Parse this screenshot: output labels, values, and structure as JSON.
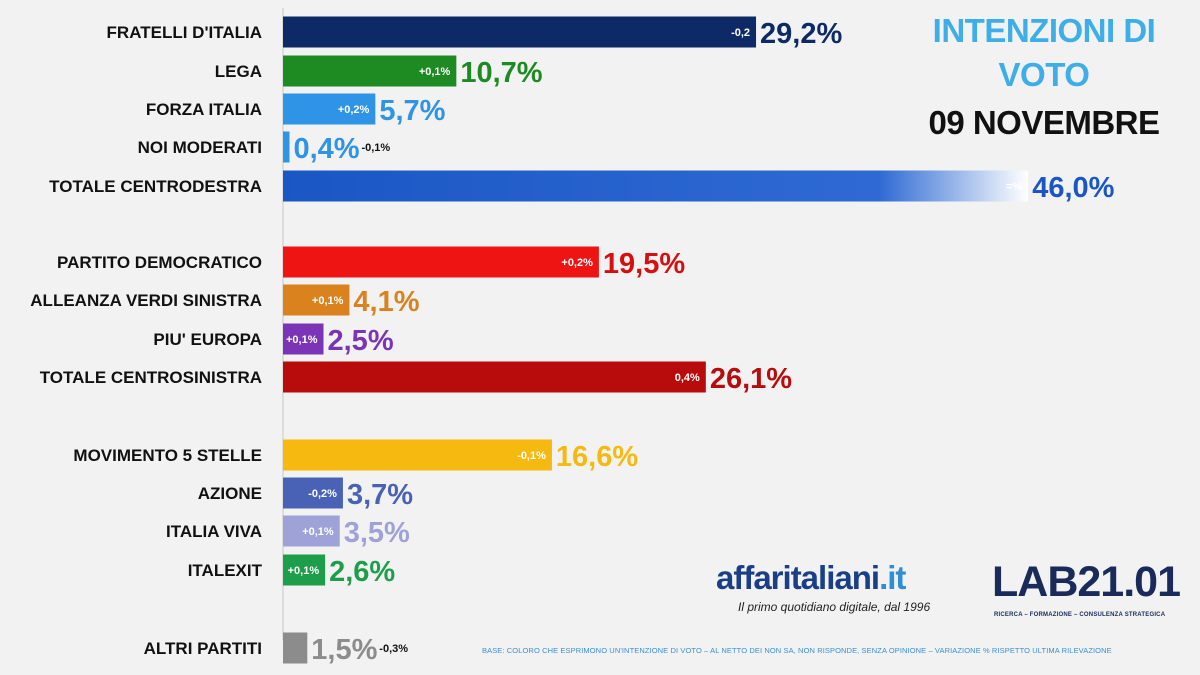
{
  "header": {
    "title_line1": "INTENZIONI DI",
    "title_line2": "VOTO",
    "date": "09 NOVEMBRE"
  },
  "brand": {
    "name_main": "affaritaliani",
    "name_suffix": ".it",
    "tagline": "Il primo quotidiano digitale, dal 1996",
    "lab_logo": "LAB21.01",
    "lab_subtitle": "RICERCA – FORMAZIONE – CONSULENZA STRATEGICA"
  },
  "footnote": "BASE: COLORO CHE ESPRIMONO UN'INTENZIONE DI VOTO – AL NETTO DEI NON SA, NON RISPONDE, SENZA OPINIONE – VARIAZIONE % RISPETTO ULTIMA RILEVAZIONE",
  "chart_data": {
    "type": "bar",
    "orientation": "horizontal",
    "unit": "%",
    "bars": [
      {
        "label": "FRATELLI D'ITALIA",
        "value": 29.2,
        "display": "29,2%",
        "delta": "-0,2",
        "delta_position": "inside",
        "color": "#0d2a66",
        "value_color": "#0d2a66",
        "gradient": false
      },
      {
        "label": "LEGA",
        "value": 10.7,
        "display": "10,7%",
        "delta": "+0,1%",
        "delta_position": "inside",
        "color": "#1e8a22",
        "value_color": "#1e8a22",
        "gradient": false
      },
      {
        "label": "FORZA ITALIA",
        "value": 5.7,
        "display": "5,7%",
        "delta": "+0,2%",
        "delta_position": "inside",
        "color": "#2f93e6",
        "value_color": "#2f93e6",
        "gradient": false
      },
      {
        "label": "NOI MODERATI",
        "value": 0.4,
        "display": "0,4%",
        "delta": "-0,1%",
        "delta_position": "outside",
        "color": "#2f93e6",
        "value_color": "#2f93e6",
        "gradient": false
      },
      {
        "label": "TOTALE CENTRODESTRA",
        "value": 46.0,
        "display": "46,0%",
        "delta": "=%",
        "delta_position": "inside",
        "color": "#1b57c4",
        "value_color": "#1b57c4",
        "gradient": true
      },
      {
        "label": "PARTITO DEMOCRATICO",
        "value": 19.5,
        "display": "19,5%",
        "delta": "+0,2%",
        "delta_position": "inside",
        "color": "#ee1414",
        "value_color": "#d41010",
        "gradient": false
      },
      {
        "label": "ALLEANZA VERDI SINISTRA",
        "value": 4.1,
        "display": "4,1%",
        "delta": "+0,1%",
        "delta_position": "inside",
        "color": "#d9821e",
        "value_color": "#d9821e",
        "gradient": false
      },
      {
        "label": "PIU' EUROPA",
        "value": 2.5,
        "display": "2,5%",
        "delta": "+0,1%",
        "delta_position": "inside",
        "color": "#7a34b5",
        "value_color": "#7a34b5",
        "gradient": false
      },
      {
        "label": "TOTALE CENTROSINISTRA",
        "value": 26.1,
        "display": "26,1%",
        "delta": "0,4%",
        "delta_position": "inside",
        "color": "#b80c0c",
        "value_color": "#b80c0c",
        "gradient": false
      },
      {
        "label": "MOVIMENTO 5 STELLE",
        "value": 16.6,
        "display": "16,6%",
        "delta": "-0,1%",
        "delta_position": "inside",
        "color": "#f5b90f",
        "value_color": "#f5b90f",
        "gradient": false
      },
      {
        "label": "AZIONE",
        "value": 3.7,
        "display": "3,7%",
        "delta": "-0,2%",
        "delta_position": "inside",
        "color": "#4a62b5",
        "value_color": "#4a62b5",
        "gradient": false
      },
      {
        "label": "ITALIA VIVA",
        "value": 3.5,
        "display": "3,5%",
        "delta": "+0,1%",
        "delta_position": "inside",
        "color": "#9ea2d6",
        "value_color": "#9ea2d6",
        "gradient": false
      },
      {
        "label": "ITALEXIT",
        "value": 2.6,
        "display": "2,6%",
        "delta": "+0,1%",
        "delta_position": "inside",
        "color": "#1e9e4a",
        "value_color": "#1e9e4a",
        "gradient": false
      },
      {
        "label": "ALTRI PARTITI",
        "value": 1.5,
        "display": "1,5%",
        "delta": "-0,3%",
        "delta_position": "outside",
        "color": "#8c8c8c",
        "value_color": "#8c8c8c",
        "gradient": false
      }
    ]
  }
}
